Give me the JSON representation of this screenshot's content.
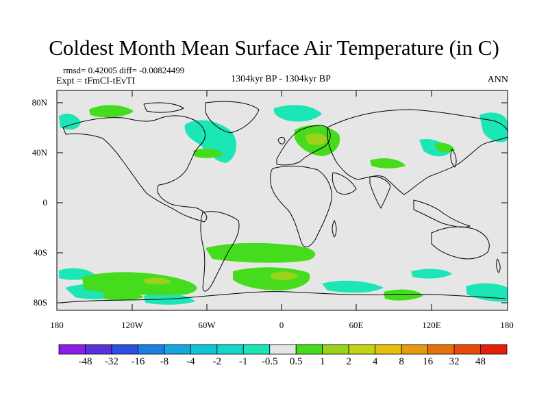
{
  "title": "Coldest Month Mean Surface Air Temperature (in C)",
  "stats": "rmsd= 0.42005 diff= -0.00824499",
  "experiment": "Expt = tFmCI-tEvTI",
  "period": "1304kyr BP - 1304kyr BP",
  "season": "ANN",
  "axes": {
    "lat_ticks": [
      "80N",
      "40N",
      "0",
      "40S",
      "80S"
    ],
    "lon_ticks": [
      "180",
      "120W",
      "60W",
      "0",
      "60E",
      "120E",
      "180"
    ]
  },
  "colorbar": {
    "labels": [
      "-48",
      "-32",
      "-16",
      "-8",
      "-4",
      "-2",
      "-1",
      "-0.5",
      "0.5",
      "1",
      "2",
      "4",
      "8",
      "16",
      "32",
      "48"
    ],
    "colors": [
      "#8a1ee6",
      "#5a32dc",
      "#2d4ede",
      "#1c7ee2",
      "#16a5dd",
      "#12c3d6",
      "#13d7c9",
      "#1ce6b5",
      "#e6e6e6",
      "#46dc1e",
      "#9ad21c",
      "#c3d215",
      "#e6be0c",
      "#e69a10",
      "#e6700c",
      "#e64a0a",
      "#e61e0a"
    ]
  },
  "colors": {
    "ocean_background": "#e6e6e6",
    "coast": "#000000"
  }
}
